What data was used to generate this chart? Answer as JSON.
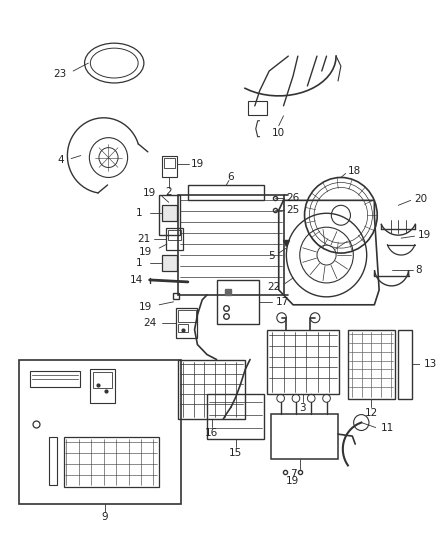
{
  "bg_color": "#ffffff",
  "line_color": "#333333",
  "text_color": "#222222",
  "fig_width": 4.38,
  "fig_height": 5.33,
  "dpi": 100
}
